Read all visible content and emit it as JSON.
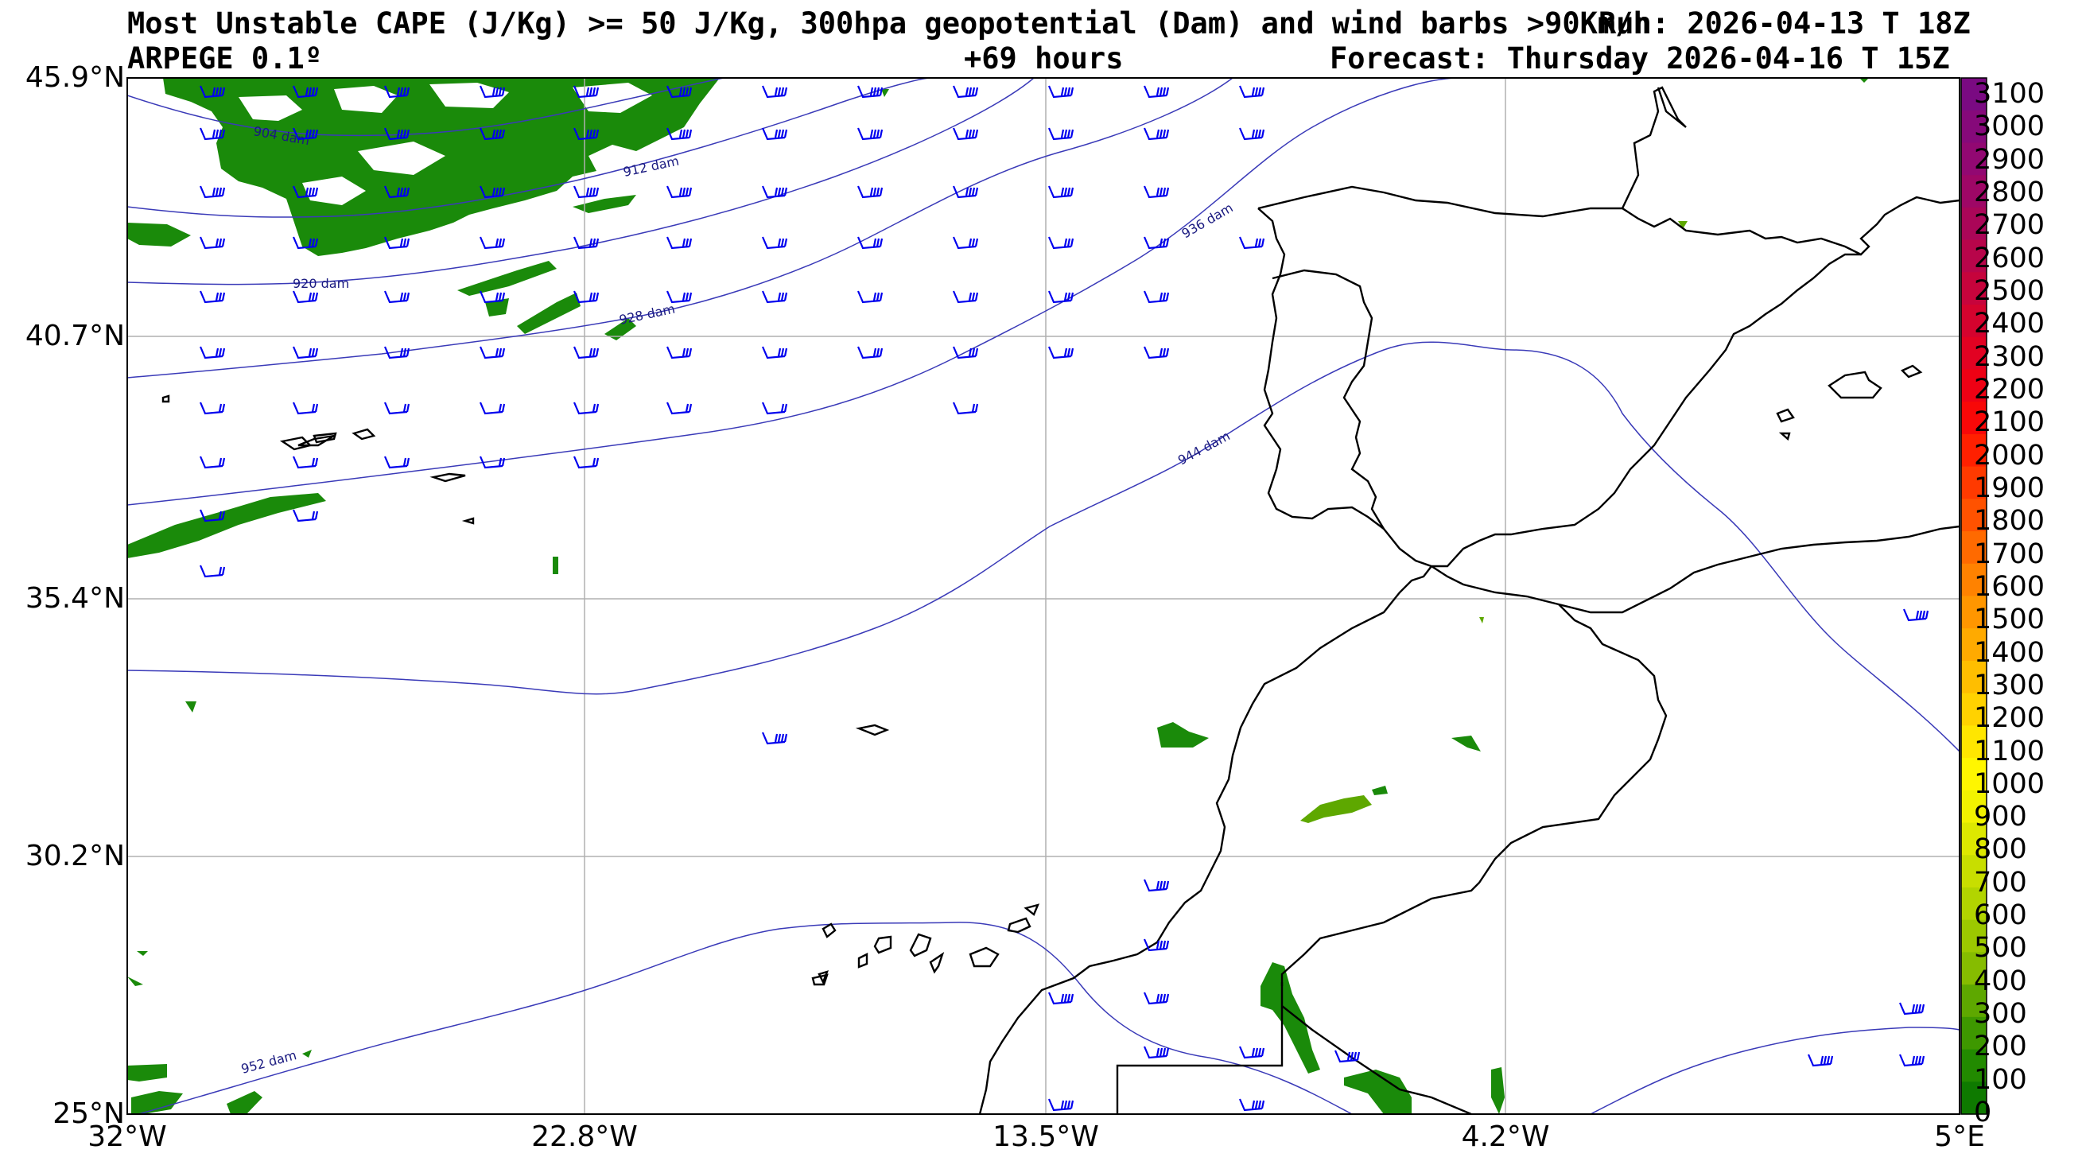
{
  "header": {
    "title": "Most Unstable CAPE (J/Kg) >= 50 J/Kg, 300hpa geopotential (Dam) and wind barbs >90Km/h",
    "run": "Run: 2026-04-13 T 18Z",
    "model": "ARPEGE 0.1º",
    "lead": "+69 hours",
    "forecast": "Forecast: Thursday 2026-04-16 T 15Z"
  },
  "axes": {
    "y_labels": [
      "45.9°N",
      "40.7°N",
      "35.4°N",
      "30.2°N",
      "25°N"
    ],
    "x_labels": [
      "32°W",
      "22.8°W",
      "13.5°W",
      "4.2°W",
      "5°E"
    ]
  },
  "contours": [
    {
      "label": "904 dam"
    },
    {
      "label": "912 dam"
    },
    {
      "label": "920 dam"
    },
    {
      "label": "928 dam"
    },
    {
      "label": "936 dam"
    },
    {
      "label": "944 dam"
    },
    {
      "label": "952 dam"
    }
  ],
  "colorbar": {
    "ticks": [
      "3100",
      "3000",
      "2900",
      "2800",
      "2700",
      "2600",
      "2500",
      "2400",
      "2300",
      "2200",
      "2100",
      "2000",
      "1900",
      "1800",
      "1700",
      "1600",
      "1500",
      "1400",
      "1300",
      "1200",
      "1100",
      "1000",
      "900",
      "800",
      "700",
      "600",
      "500",
      "400",
      "300",
      "200",
      "100",
      "0"
    ],
    "colors": [
      "#7a0a82",
      "#86097a",
      "#920872",
      "#9e0766",
      "#aa0658",
      "#b8054a",
      "#c6043c",
      "#d4032e",
      "#e20222",
      "#ee0114",
      "#f80808",
      "#ff2000",
      "#ff3a00",
      "#ff5200",
      "#ff6a00",
      "#ff8200",
      "#ff9600",
      "#ffaa00",
      "#ffbe00",
      "#ffd200",
      "#ffe600",
      "#fff600",
      "#f2f200",
      "#dde800",
      "#c8de00",
      "#b2d400",
      "#9cc800",
      "#86bc00",
      "#5ea800",
      "#3e9800",
      "#228a00",
      "#0e7a00"
    ]
  },
  "colors": {
    "cape_low": "#1a8a0a",
    "cape_mid": "#5ea800",
    "contour": "#3a3ab8",
    "barb": "#0000ee",
    "coast": "#000000",
    "grid": "#b0b0b0"
  }
}
